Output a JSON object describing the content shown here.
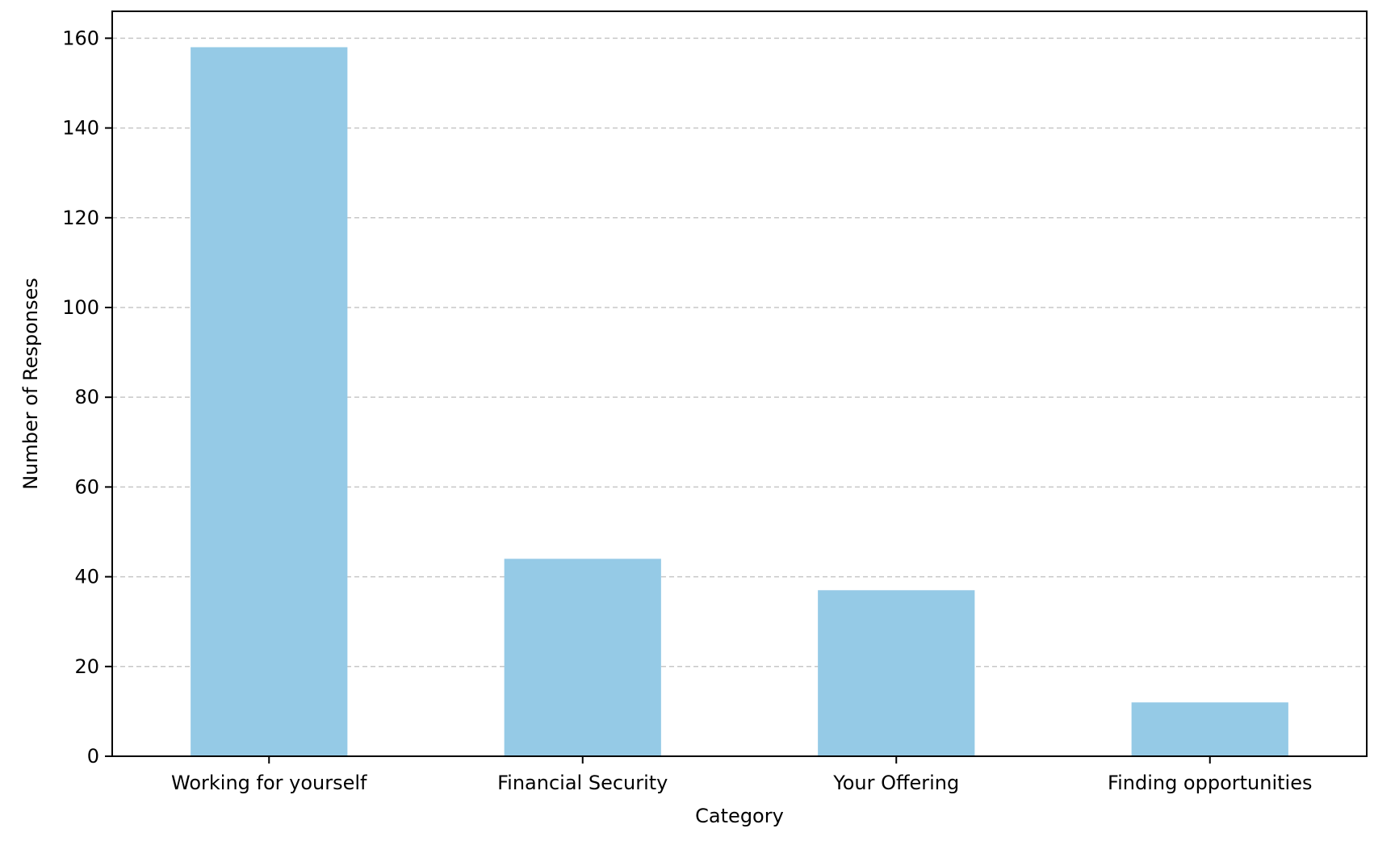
{
  "chart_data": {
    "type": "bar",
    "title": "",
    "xlabel": "Category",
    "ylabel": "Number of Responses",
    "categories": [
      "Working for yourself",
      "Financial Security",
      "Your Offering",
      "Finding opportunities"
    ],
    "values": [
      158,
      44,
      37,
      12
    ],
    "ylim": [
      0,
      166
    ],
    "yticks": [
      0,
      20,
      40,
      60,
      80,
      100,
      120,
      140,
      160
    ],
    "ytick_labels": [
      "0",
      "20",
      "40",
      "60",
      "80",
      "100",
      "120",
      "140",
      "160"
    ],
    "grid": "y-dashed",
    "legend": "none",
    "colors": {
      "bar": "#95cae6",
      "grid": "#b0b0b0",
      "axis": "#000000"
    }
  }
}
